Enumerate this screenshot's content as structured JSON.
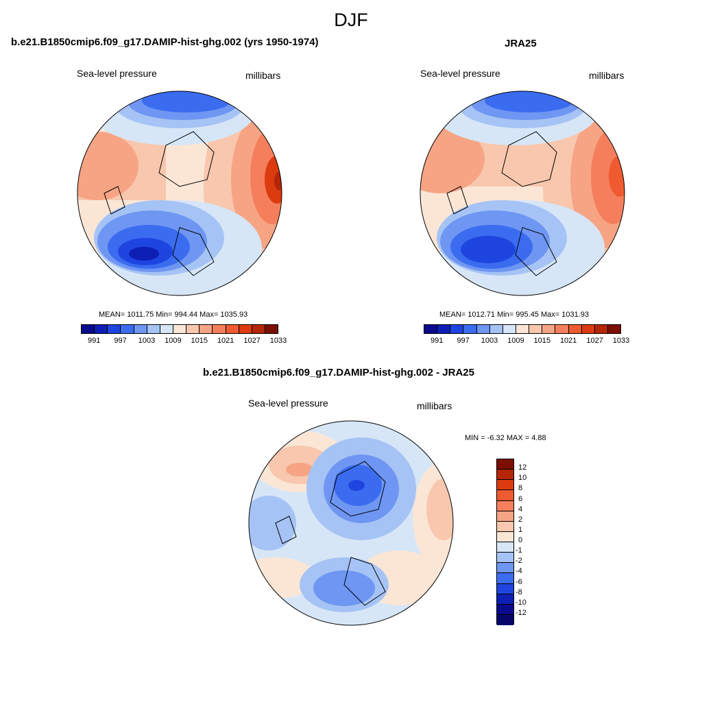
{
  "figure": {
    "title": "DJF"
  },
  "panels": [
    {
      "title": "b.e21.B1850cmip6.f09_g17.DAMIP-hist-ghg.002 (yrs 1950-1974)",
      "left_label": "Sea-level pressure",
      "right_label": "millibars",
      "stats": "MEAN= 1011.75  Min= 994.44  Max= 1035.93",
      "colorbar": {
        "orientation": "horizontal",
        "tick_labels": [
          "991",
          "997",
          "1003",
          "1009",
          "1015",
          "1021",
          "1027",
          "1033"
        ],
        "colors": [
          "#0a0a8c",
          "#0d1fb5",
          "#1f45e0",
          "#3b6cf0",
          "#6e96f2",
          "#a6c3f5",
          "#d6e6f7",
          "#fbe6d6",
          "#f8c7ad",
          "#f6a484",
          "#f57f5c",
          "#f05a30",
          "#dc3b10",
          "#b52608",
          "#7c0f04"
        ]
      },
      "chart_data": {
        "type": "heatmap",
        "projection": "north-polar stereographic",
        "variable": "Sea-level pressure",
        "units": "millibars",
        "mean": 1011.75,
        "min": 994.44,
        "max": 1035.93,
        "contour_levels": [
          991,
          994,
          997,
          1000,
          1003,
          1006,
          1009,
          1012,
          1015,
          1018,
          1021,
          1024,
          1027,
          1030,
          1033
        ]
      }
    },
    {
      "title": "JRA25",
      "left_label": "Sea-level pressure",
      "right_label": "millibars",
      "stats": "MEAN= 1012.71  Min= 995.45  Max= 1031.93",
      "colorbar": {
        "orientation": "horizontal",
        "tick_labels": [
          "991",
          "997",
          "1003",
          "1009",
          "1015",
          "1021",
          "1027",
          "1033"
        ],
        "colors": [
          "#0a0a8c",
          "#0d1fb5",
          "#1f45e0",
          "#3b6cf0",
          "#6e96f2",
          "#a6c3f5",
          "#d6e6f7",
          "#fbe6d6",
          "#f8c7ad",
          "#f6a484",
          "#f57f5c",
          "#f05a30",
          "#dc3b10",
          "#b52608",
          "#7c0f04"
        ]
      },
      "chart_data": {
        "type": "heatmap",
        "projection": "north-polar stereographic",
        "variable": "Sea-level pressure",
        "units": "millibars",
        "mean": 1012.71,
        "min": 995.45,
        "max": 1031.93,
        "contour_levels": [
          991,
          994,
          997,
          1000,
          1003,
          1006,
          1009,
          1012,
          1015,
          1018,
          1021,
          1024,
          1027,
          1030,
          1033
        ]
      }
    },
    {
      "title": "b.e21.B1850cmip6.f09_g17.DAMIP-hist-ghg.002 - JRA25",
      "left_label": "Sea-level pressure",
      "right_label": "millibars",
      "stats": "MIN =  -6.32 MAX =   4.88",
      "colorbar": {
        "orientation": "vertical",
        "tick_labels": [
          "12",
          "10",
          "8",
          "6",
          "4",
          "2",
          "1",
          "0",
          "-1",
          "-2",
          "-4",
          "-6",
          "-8",
          "-10",
          "-12"
        ],
        "colors": [
          "#7c0f04",
          "#b52608",
          "#dc3b10",
          "#f05a30",
          "#f57f5c",
          "#f6a484",
          "#f8c7ad",
          "#fbe6d6",
          "#d6e6f7",
          "#a6c3f5",
          "#6e96f2",
          "#3b6cf0",
          "#1f45e0",
          "#0d1fb5",
          "#0a0a8c",
          "#06066a"
        ]
      },
      "chart_data": {
        "type": "heatmap",
        "projection": "north-polar stereographic",
        "variable": "Sea-level pressure difference",
        "units": "millibars",
        "min": -6.32,
        "max": 4.88,
        "contour_levels": [
          -12,
          -10,
          -8,
          -6,
          -4,
          -2,
          -1,
          0,
          1,
          2,
          4,
          6,
          8,
          10,
          12
        ]
      }
    }
  ]
}
